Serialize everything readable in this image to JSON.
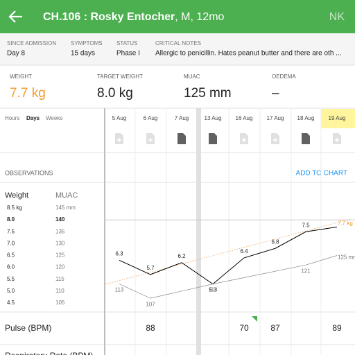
{
  "header": {
    "title": "CH.106 : Rosky Entocher",
    "subtitle": ", M, 12mo",
    "initials": "NK"
  },
  "summary": [
    {
      "label": "SINCE ADMISSION",
      "value": "Day 8"
    },
    {
      "label": "SYMPTOMS",
      "value": "15 days"
    },
    {
      "label": "STATUS",
      "value": "Phase I"
    },
    {
      "label": "CRITICAL NOTES",
      "value": "Allergic to penicillin. Hates peanut butter and there are oth ..."
    }
  ],
  "stats": [
    {
      "label": "WEIGHT",
      "value": "7.7 kg"
    },
    {
      "label": "TARGET WEIGHT",
      "value": "8.0 kg"
    },
    {
      "label": "MUAC",
      "value": "125 mm"
    },
    {
      "label": "OEDEMA",
      "value": "–"
    }
  ],
  "tabs": [
    "Hours",
    "Days",
    "Weeks"
  ],
  "dates": [
    "5 Aug",
    "6 Aug",
    "7 Aug",
    "13 Aug",
    "16 Aug",
    "17 Aug",
    "18 Aug",
    "19 Aug"
  ],
  "observations": {
    "title": "OBSERVATIONS",
    "action": "ADD TO CHART"
  },
  "chart": {
    "weight_label": "Weight",
    "muac_label": "MUAC",
    "ylim": [
      4.5,
      8.5
    ],
    "yticks": [
      {
        "value": 8.5,
        "label": "8.5 kg"
      },
      {
        "value": 8,
        "label": "8.0"
      },
      7.5,
      {
        "value": 7,
        "label": "7.0"
      },
      6.5,
      {
        "value": 6,
        "label": "6.0"
      },
      5.5,
      {
        "value": 5,
        "label": "5.0"
      },
      4.5
    ],
    "y2lim": [
      105,
      145
    ],
    "y2ticks": [
      {
        "value": 145,
        "label": "145 mm"
      },
      140,
      135,
      130,
      125,
      120,
      115,
      110,
      105
    ],
    "series": [
      {
        "name": "Weight",
        "color": "#000000",
        "values": [
          6.3,
          5.7,
          6.2,
          5.3,
          6.4,
          6.8,
          7.5,
          7.7
        ],
        "value_labels": [
          "6.3",
          "5.7",
          "6.2",
          "5.3",
          "6.4",
          "6.8",
          "7.5",
          "7.7 kg"
        ]
      },
      {
        "name": "MUAC",
        "color": "#888888",
        "axis": "y2",
        "values": [
          113,
          107,
          null,
          113,
          null,
          null,
          121,
          125
        ],
        "value_labels": [
          "113",
          "107",
          null,
          "113",
          null,
          null,
          "121",
          "125 mm"
        ]
      }
    ]
  },
  "rows": [
    {
      "label": "Pulse (BPM)",
      "values": [
        null,
        88,
        null,
        null,
        70,
        87,
        null,
        89
      ]
    },
    {
      "label": "Respiratory Rate (BPM)"
    }
  ]
}
